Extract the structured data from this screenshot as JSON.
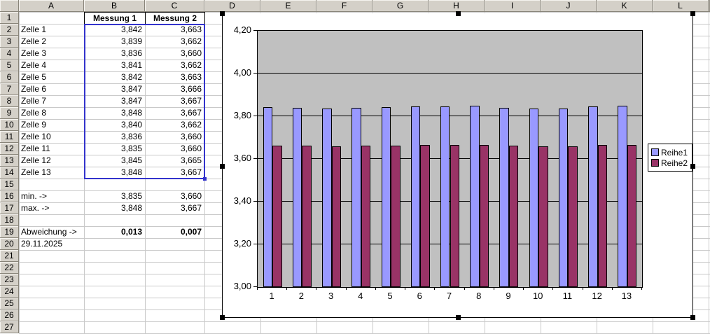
{
  "sheet": {
    "column_headers": [
      "A",
      "B",
      "C",
      "D",
      "E",
      "F",
      "G",
      "H",
      "I",
      "J",
      "K",
      "L"
    ],
    "row_count": 27,
    "table_headers": {
      "messung1": "Messung 1",
      "messung2": "Messung 2"
    },
    "data_rows": [
      {
        "label": "Zelle 1",
        "m1": "3,842",
        "m2": "3,663"
      },
      {
        "label": "Zelle 2",
        "m1": "3,839",
        "m2": "3,662"
      },
      {
        "label": "Zelle 3",
        "m1": "3,836",
        "m2": "3,660"
      },
      {
        "label": "Zelle 4",
        "m1": "3,841",
        "m2": "3,662"
      },
      {
        "label": "Zelle 5",
        "m1": "3,842",
        "m2": "3,663"
      },
      {
        "label": "Zelle 6",
        "m1": "3,847",
        "m2": "3,666"
      },
      {
        "label": "Zelle 7",
        "m1": "3,847",
        "m2": "3,667"
      },
      {
        "label": "Zelle 8",
        "m1": "3,848",
        "m2": "3,667"
      },
      {
        "label": "Zelle 9",
        "m1": "3,840",
        "m2": "3,662"
      },
      {
        "label": "Zelle 10",
        "m1": "3,836",
        "m2": "3,660"
      },
      {
        "label": "Zelle 11",
        "m1": "3,835",
        "m2": "3,660"
      },
      {
        "label": "Zelle 12",
        "m1": "3,845",
        "m2": "3,665"
      },
      {
        "label": "Zelle 13",
        "m1": "3,848",
        "m2": "3,667"
      }
    ],
    "stats_rows": [
      {
        "row": 16,
        "label": "min. ->",
        "m1": "3,835",
        "m2": "3,660"
      },
      {
        "row": 17,
        "label": "max. ->",
        "m1": "3,848",
        "m2": "3,667"
      }
    ],
    "deviation_row": {
      "row": 19,
      "label": "Abweichung ->",
      "m1": "0,013",
      "m2": "0,007"
    },
    "date_cell": {
      "row": 20,
      "text": "29.11.2025"
    }
  },
  "chart": {
    "y_tick_labels": [
      "4,20",
      "4,00",
      "3,80",
      "3,60",
      "3,40",
      "3,20",
      "3,00"
    ],
    "x_tick_labels": [
      "1",
      "2",
      "3",
      "4",
      "5",
      "6",
      "7",
      "8",
      "9",
      "10",
      "11",
      "12",
      "13"
    ],
    "series_colors": [
      "#9999ff",
      "#993366"
    ],
    "plot_background": "#c0c0c0"
  },
  "chart_data": {
    "type": "bar",
    "categories": [
      1,
      2,
      3,
      4,
      5,
      6,
      7,
      8,
      9,
      10,
      11,
      12,
      13
    ],
    "series": [
      {
        "name": "Reihe1",
        "values": [
          3.842,
          3.839,
          3.836,
          3.841,
          3.842,
          3.847,
          3.847,
          3.848,
          3.84,
          3.836,
          3.835,
          3.845,
          3.848
        ]
      },
      {
        "name": "Reihe2",
        "values": [
          3.663,
          3.662,
          3.66,
          3.662,
          3.663,
          3.666,
          3.667,
          3.667,
          3.662,
          3.66,
          3.66,
          3.665,
          3.667
        ]
      }
    ],
    "title": "",
    "xlabel": "",
    "ylabel": "",
    "ylim": [
      3.0,
      4.2
    ],
    "ytick_step": 0.2,
    "grid": true,
    "legend_position": "right",
    "plot_background": "#c0c0c0"
  }
}
